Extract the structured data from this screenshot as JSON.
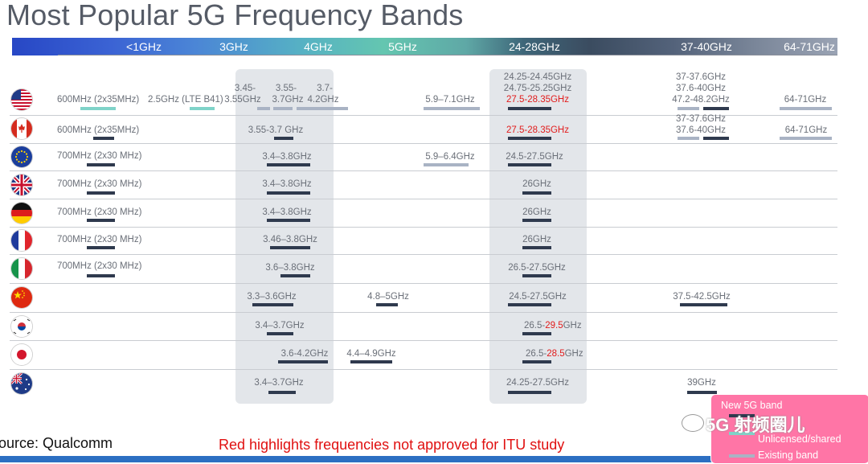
{
  "title": "Most Popular 5G Frequency Bands",
  "scale_labels": [
    "<1GHz",
    "3GHz",
    "4GHz",
    "5GHz",
    "24-28GHz",
    "37-40GHz",
    "64-71GHz"
  ],
  "countries": [
    {
      "name": "United States",
      "flag": "us-flag-icon"
    },
    {
      "name": "Canada",
      "flag": "canada-flag-icon"
    },
    {
      "name": "European Union",
      "flag": "eu-flag-icon"
    },
    {
      "name": "United Kingdom",
      "flag": "uk-flag-icon"
    },
    {
      "name": "Germany",
      "flag": "germany-flag-icon"
    },
    {
      "name": "France",
      "flag": "france-flag-icon"
    },
    {
      "name": "Italy",
      "flag": "italy-flag-icon"
    },
    {
      "name": "China",
      "flag": "china-flag-icon"
    },
    {
      "name": "South Korea",
      "flag": "korea-flag-icon"
    },
    {
      "name": "Japan",
      "flag": "japan-flag-icon"
    },
    {
      "name": "Australia",
      "flag": "australia-flag-icon"
    }
  ],
  "bands": {
    "us_600": "600MHz (2x35MHz)",
    "us_lte": "2.5GHz (LTE B41)",
    "us_345_a": "3.45-",
    "us_345_b": "3.55GHz",
    "us_355_a": "3.55-",
    "us_355_b": "3.7GHz",
    "us_37_a": "3.7-",
    "us_37_b": "4.2GHz",
    "us_59": "5.9–7.1GHz",
    "us_24_1": "24.25-24.45GHz",
    "us_24_2": "24.75-25.25GHz",
    "us_24_3": "27.5-28.35GHz",
    "us_37_1": "37-37.6GHz",
    "us_37_2": "37.6-40GHz",
    "us_37_3": "47.2-48.2GHz",
    "us_64": "64-71GHz",
    "ca_600": "600MHz (2x35MHz)",
    "ca_355": "3.55-3.7 GHz",
    "ca_275": "27.5-28.35GHz",
    "ca_37_1": "37-37.6GHz",
    "ca_37_2": "37.6-40GHz",
    "ca_64": "64-71GHz",
    "eu_700": "700MHz (2x30 MHz)",
    "eu_34": "3.4–3.8GHz",
    "eu_59": "5.9–6.4GHz",
    "eu_245": "24.5-27.5GHz",
    "uk_700": "700MHz (2x30 MHz)",
    "uk_34": "3.4–3.8GHz",
    "uk_26": "26GHz",
    "de_700": "700MHz (2x30 MHz)",
    "de_34": "3.4–3.8GHz",
    "de_26": "26GHz",
    "fr_700": "700MHz (2x30 MHz)",
    "fr_346": "3.46–3.8GHz",
    "fr_26": "26GHz",
    "it_700": "700MHz (2x30 MHz)",
    "it_36": "3.6–3.8GHz",
    "it_265": "26.5-27.5GHz",
    "cn_33": "3.3–3.6GHz",
    "cn_48": "4.8–5GHz",
    "cn_245": "24.5-27.5GHz",
    "cn_375": "37.5-42.5GHz",
    "kr_34": "3.4–3.7GHz",
    "kr_265_a": "26.5-",
    "kr_265_b": "29.5",
    "kr_265_c": "GHz",
    "jp_36": "3.6-4.2GHz",
    "jp_44": "4.4–4.9GHz",
    "jp_265_a": "26.5-",
    "jp_265_b": "28.5",
    "jp_265_c": "GHz",
    "au_34": "3.4–3.7GHz",
    "au_2425": "24.25-27.5GHz",
    "au_39": "39GHz"
  },
  "legend": {
    "new": "New 5G band",
    "unlicensed": "Unlicensed/shared",
    "existing": "Existing band"
  },
  "watermark": "5G 射频圈儿",
  "source": "ource: Qualcomm",
  "note": "Red highlights frequencies not approved for ITU study",
  "colors": {
    "highlight": "#e21b1b",
    "new_band": "#2f3a4e",
    "existing_band": "#a9b3c4",
    "unlicensed_band": "#7fd3c9",
    "legend_bg": "#ff75a6"
  }
}
